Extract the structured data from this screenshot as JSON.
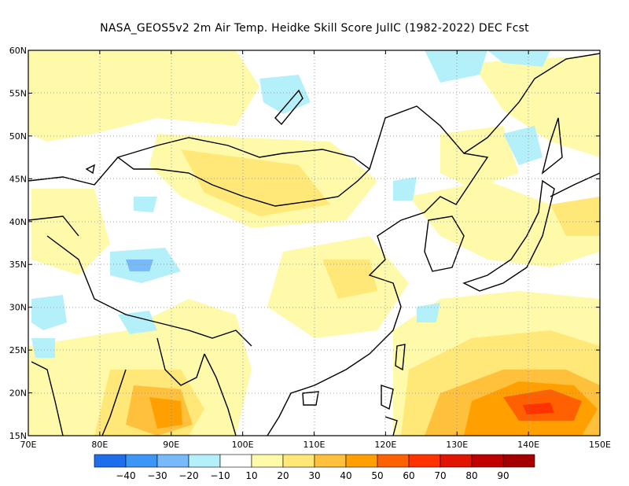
{
  "title": "NASA_GEOS5v2  2m Air Temp. Heidke Skill Score JulIC (1982-2022) DEC Fcst",
  "map": {
    "lon_range": [
      70,
      150
    ],
    "lat_range": [
      15,
      60
    ],
    "lon_ticks": [
      "70E",
      "80E",
      "90E",
      "100E",
      "110E",
      "120E",
      "130E",
      "140E",
      "150E"
    ],
    "lat_ticks": [
      "15N",
      "20N",
      "25N",
      "30N",
      "35N",
      "40N",
      "45N",
      "50N",
      "55N",
      "60N"
    ],
    "gridlines": "dotted"
  },
  "colorbar": {
    "colors": [
      "#1e6eeb",
      "#3c96f5",
      "#78b9fa",
      "#b4f0fa",
      "#ffffff",
      "#fffaaa",
      "#ffe878",
      "#ffc03c",
      "#ffa000",
      "#ff6000",
      "#ff3200",
      "#e11400",
      "#c00000",
      "#a50000"
    ],
    "labels": [
      "−40",
      "−30",
      "−20",
      "−10",
      "10",
      "20",
      "30",
      "40",
      "50",
      "60",
      "70",
      "80",
      "90"
    ]
  },
  "regions": [
    {
      "name": "south-china-sea-warm",
      "level": "30-50",
      "color": "#ffc03c"
    },
    {
      "name": "western-pacific-warm",
      "level": "40-70",
      "color": "#ffa000"
    },
    {
      "name": "bay-of-bengal-warm",
      "level": "30-50",
      "color": "#ffc03c"
    },
    {
      "name": "mongolia-warm",
      "level": "20-30",
      "color": "#ffe878"
    },
    {
      "name": "tibet-cool",
      "level": "-10 to -30",
      "color": "#78b9fa"
    }
  ]
}
